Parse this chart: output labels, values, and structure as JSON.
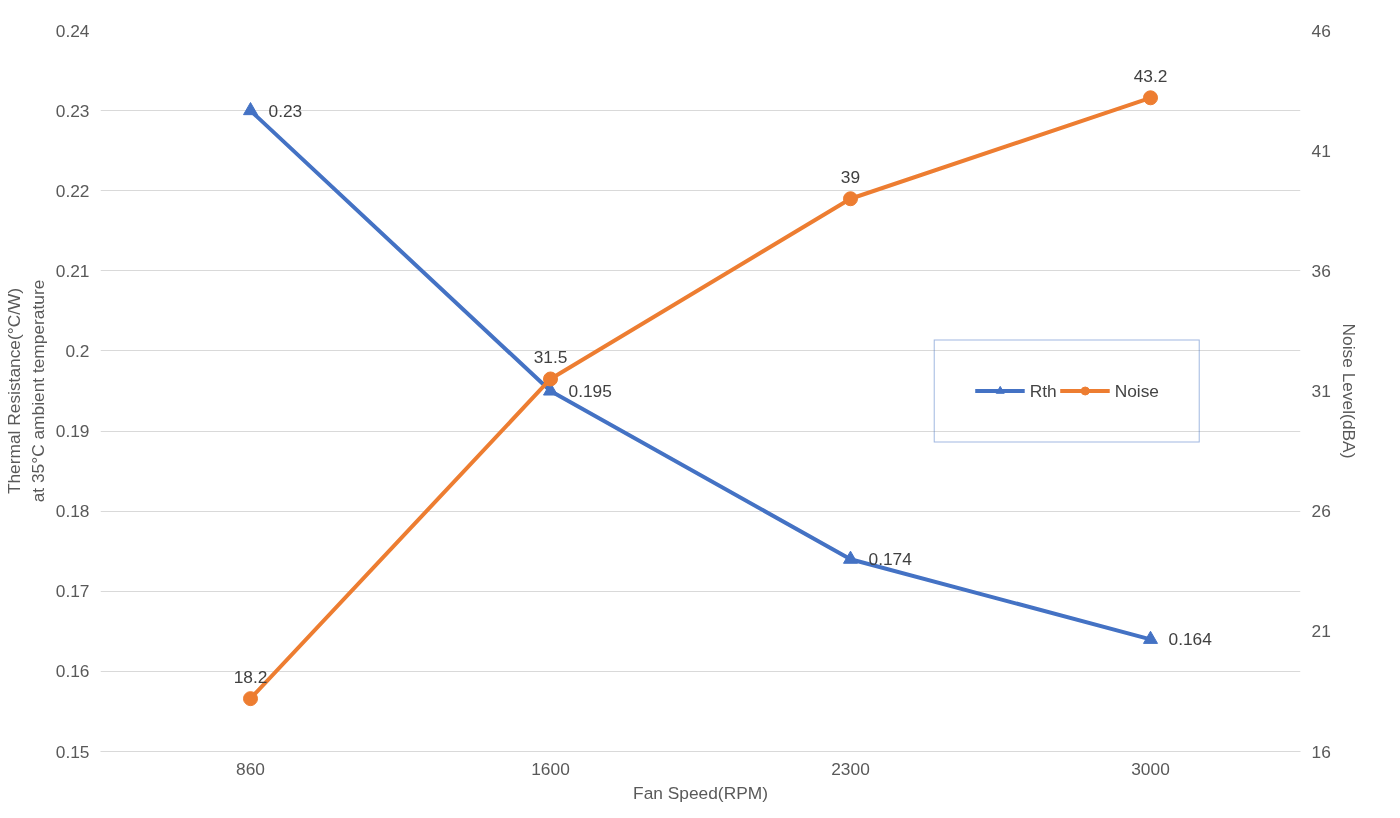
{
  "chart_data": {
    "type": "line",
    "xlabel": "Fan Speed(RPM)",
    "ylabel": "Thermal Resistance(°C/W)\nat 35°C ambient temperature",
    "y2label": "Noise Level(dBA)",
    "categories": [
      "860",
      "1600",
      "2300",
      "3000"
    ],
    "series": [
      {
        "name": "Rth",
        "color": "#4472c4",
        "values": [
          0.23,
          0.195,
          0.174,
          0.164
        ],
        "marker": "triangle"
      },
      {
        "name": "Noise",
        "color": "#ed7d31",
        "values": [
          18.2,
          31.5,
          39,
          43.2
        ],
        "marker": "circle",
        "axis": "y2"
      }
    ],
    "ylim": [
      0.15,
      0.24
    ],
    "yticks": [
      0.15,
      0.16,
      0.17,
      0.18,
      0.19,
      0.2,
      0.21,
      0.22,
      0.23,
      0.24
    ],
    "y2lim": [
      16,
      46
    ],
    "y2ticks": [
      16,
      21,
      26,
      31,
      36,
      41,
      46
    ],
    "data_labels": true,
    "grid": "y",
    "legend": "right",
    "line_style": "solid"
  }
}
